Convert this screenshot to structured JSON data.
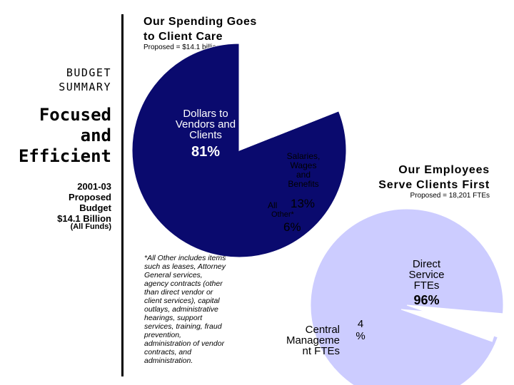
{
  "sidebar": {
    "title_lines": [
      "BUDGET",
      "SUMMARY"
    ],
    "tagline_lines": [
      "Focused",
      "and",
      "Efficient"
    ],
    "detail_lines": [
      "2001-03",
      "Proposed",
      "Budget",
      "$14.1 Billion"
    ],
    "funds_note": "(All Funds)"
  },
  "chart_data": [
    {
      "type": "pie",
      "title_lines": [
        "Our Spending Goes",
        "to Client Care"
      ],
      "subtitle": "Proposed = $14.1 billion",
      "slices": [
        {
          "label_lines": [
            "Dollars to",
            "Vendors and",
            "Clients"
          ],
          "value": 81,
          "value_label": "81%",
          "color": "#0a0a6e"
        },
        {
          "label_lines": [
            "Salaries,",
            "Wages",
            "and",
            "Benefits"
          ],
          "value": 13,
          "value_label": "13%",
          "color": "#ffffff"
        },
        {
          "label_lines": [
            "All",
            "Other*"
          ],
          "value": 6,
          "value_label": "6%",
          "color": "#ffffff"
        }
      ],
      "footnote_lines": [
        "*All Other includes items",
        "such as leases, Attorney",
        "General services,",
        "agency contracts (other",
        "than direct vendor or",
        "client services), capital",
        "outlays, administrative",
        "hearings, support",
        "services, training, fraud",
        "prevention,",
        "administration of vendor",
        "contracts, and",
        "administration."
      ]
    },
    {
      "type": "pie",
      "title_lines": [
        "Our Employees",
        "Serve Clients First"
      ],
      "subtitle": "Proposed = 18,201 FTEs",
      "slices": [
        {
          "label_lines": [
            "Direct",
            "Service",
            "FTEs"
          ],
          "value": 96,
          "value_label": "96%",
          "color": "#ccccff"
        },
        {
          "label_lines": [
            "Central",
            "Manageme",
            "nt FTEs"
          ],
          "value": 4,
          "value_label_lines": [
            "4",
            "%"
          ],
          "color": "#ffffff"
        }
      ]
    }
  ]
}
